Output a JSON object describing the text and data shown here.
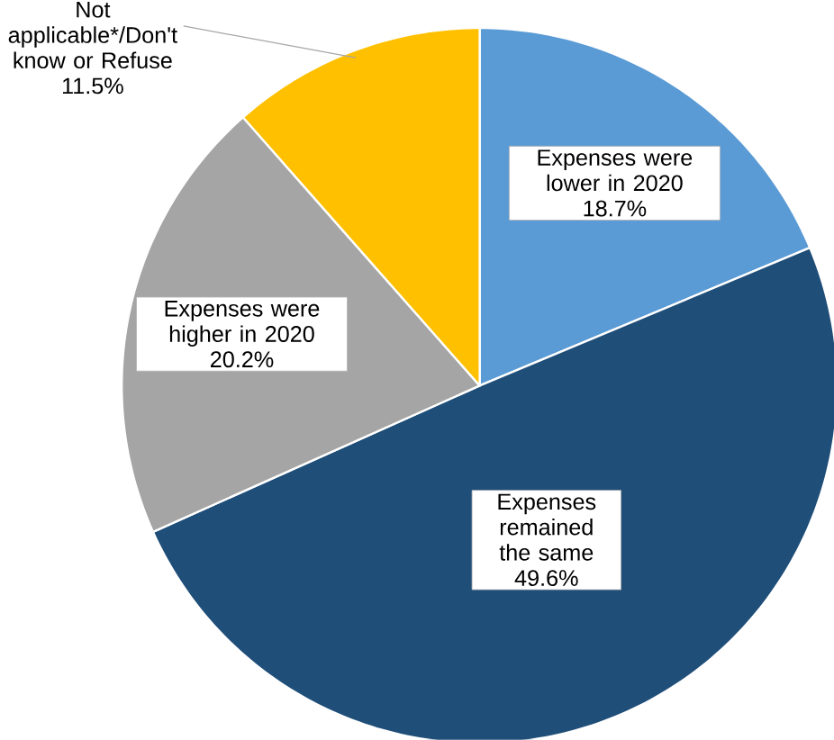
{
  "chart_data": {
    "type": "pie",
    "categories": [
      "Expenses were lower in 2020",
      "Expenses remained the same",
      "Expenses were higher in 2020",
      "Not applicable*/Don't know or Refuse"
    ],
    "values": [
      18.7,
      49.6,
      20.2,
      11.5
    ],
    "value_labels": [
      "18.7%",
      "49.6%",
      "20.2%",
      "11.5%"
    ],
    "colors": [
      "#5b9bd5",
      "#1f4e79",
      "#a5a5a5",
      "#ffc000"
    ]
  }
}
